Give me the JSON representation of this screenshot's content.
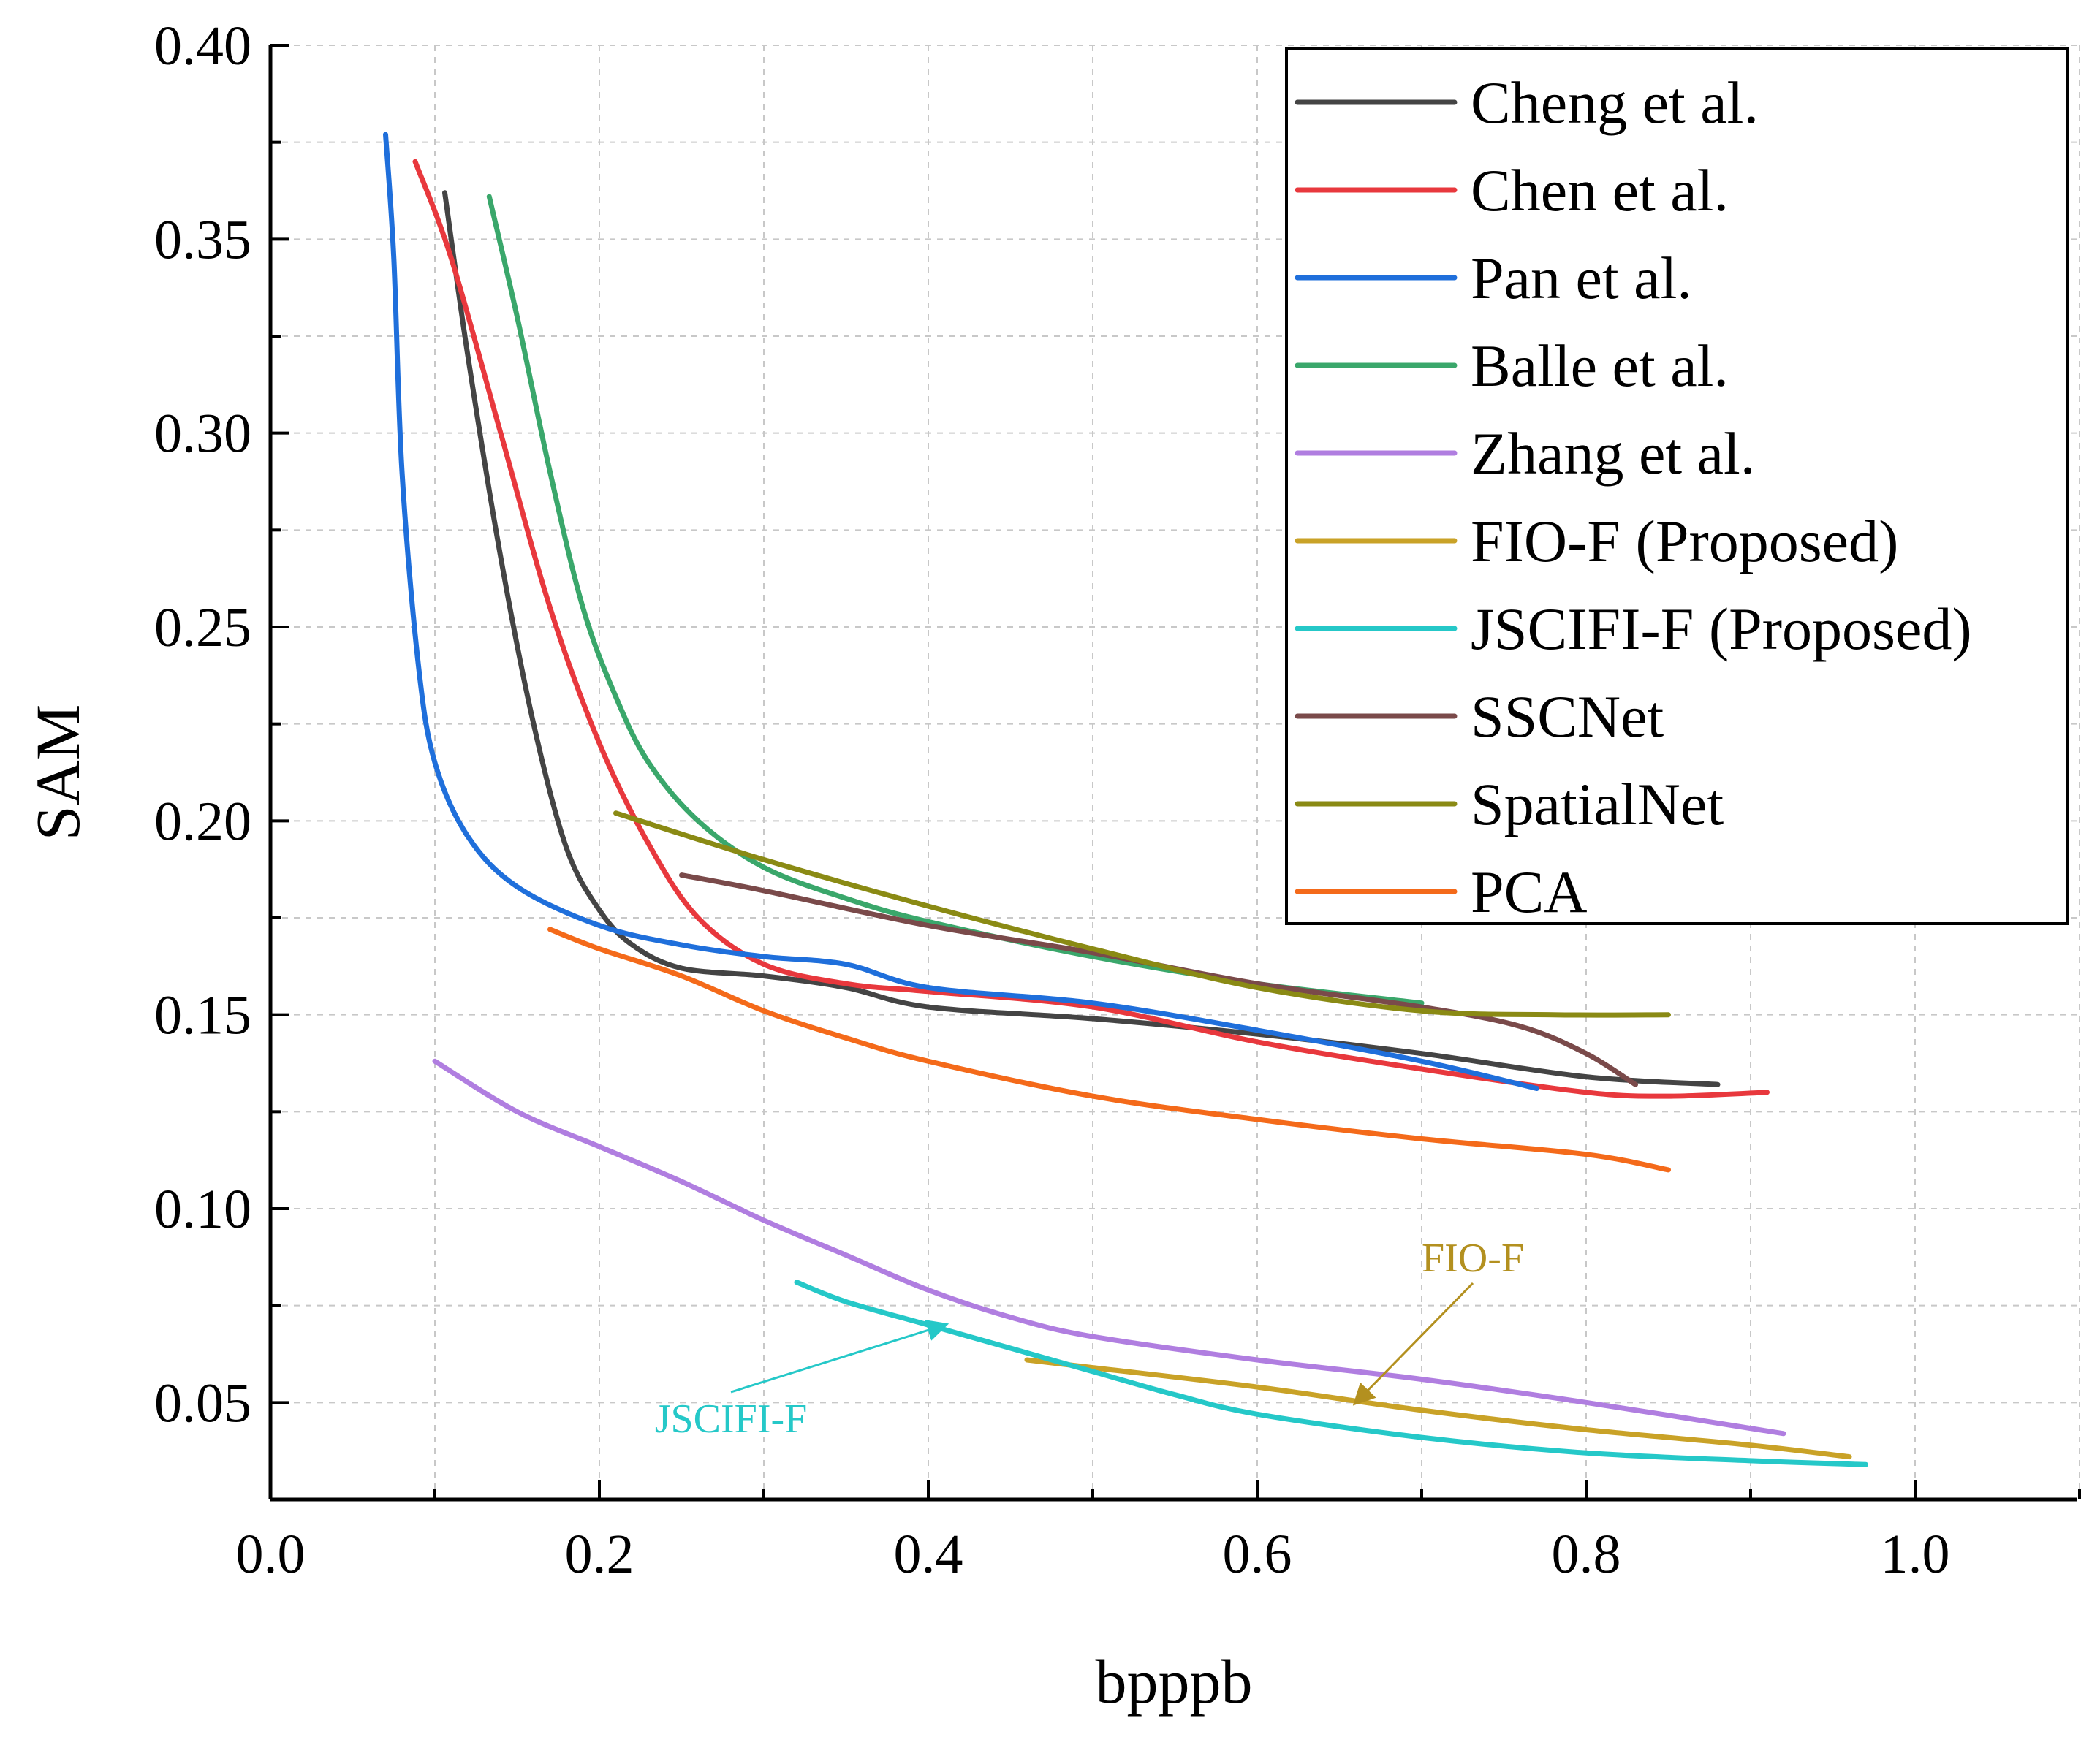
{
  "chart_data": {
    "type": "line",
    "title": "",
    "xlabel": "bpppb",
    "ylabel": "SAM",
    "xlim": [
      0.0,
      1.1
    ],
    "ylim": [
      0.025,
      0.4
    ],
    "x_ticks": [
      0.0,
      0.2,
      0.4,
      0.6,
      0.8,
      1.0
    ],
    "x_tick_labels": [
      "0.0",
      "0.2",
      "0.4",
      "0.6",
      "0.8",
      "1.0"
    ],
    "y_ticks": [
      0.05,
      0.1,
      0.15,
      0.2,
      0.25,
      0.3,
      0.35,
      0.4
    ],
    "y_tick_labels": [
      "0.05",
      "0.10",
      "0.15",
      "0.20",
      "0.25",
      "0.30",
      "0.35",
      "0.40"
    ],
    "grid": true,
    "legend_position": "top-right",
    "series": [
      {
        "name": "Cheng et al.",
        "color": "#444444",
        "points": [
          [
            0.106,
            0.362
          ],
          [
            0.12,
            0.32
          ],
          [
            0.14,
            0.268
          ],
          [
            0.16,
            0.225
          ],
          [
            0.18,
            0.193
          ],
          [
            0.2,
            0.177
          ],
          [
            0.22,
            0.168
          ],
          [
            0.25,
            0.162
          ],
          [
            0.3,
            0.16
          ],
          [
            0.35,
            0.157
          ],
          [
            0.4,
            0.152
          ],
          [
            0.5,
            0.149
          ],
          [
            0.6,
            0.145
          ],
          [
            0.7,
            0.14
          ],
          [
            0.8,
            0.134
          ],
          [
            0.88,
            0.132
          ]
        ]
      },
      {
        "name": "Chen et al.",
        "color": "#e8383d",
        "points": [
          [
            0.088,
            0.37
          ],
          [
            0.11,
            0.345
          ],
          [
            0.14,
            0.3
          ],
          [
            0.17,
            0.255
          ],
          [
            0.2,
            0.22
          ],
          [
            0.23,
            0.194
          ],
          [
            0.26,
            0.175
          ],
          [
            0.3,
            0.163
          ],
          [
            0.35,
            0.158
          ],
          [
            0.4,
            0.156
          ],
          [
            0.5,
            0.152
          ],
          [
            0.6,
            0.143
          ],
          [
            0.7,
            0.136
          ],
          [
            0.8,
            0.13
          ],
          [
            0.85,
            0.129
          ],
          [
            0.91,
            0.13
          ]
        ]
      },
      {
        "name": "Pan et al.",
        "color": "#1f6fdb",
        "points": [
          [
            0.07,
            0.377
          ],
          [
            0.075,
            0.345
          ],
          [
            0.08,
            0.29
          ],
          [
            0.09,
            0.24
          ],
          [
            0.1,
            0.215
          ],
          [
            0.12,
            0.196
          ],
          [
            0.15,
            0.183
          ],
          [
            0.2,
            0.173
          ],
          [
            0.25,
            0.168
          ],
          [
            0.3,
            0.165
          ],
          [
            0.35,
            0.163
          ],
          [
            0.4,
            0.157
          ],
          [
            0.5,
            0.153
          ],
          [
            0.6,
            0.146
          ],
          [
            0.7,
            0.138
          ],
          [
            0.77,
            0.131
          ]
        ]
      },
      {
        "name": "Balle et al.",
        "color": "#3aa76b",
        "points": [
          [
            0.133,
            0.361
          ],
          [
            0.15,
            0.33
          ],
          [
            0.17,
            0.29
          ],
          [
            0.19,
            0.255
          ],
          [
            0.21,
            0.232
          ],
          [
            0.23,
            0.215
          ],
          [
            0.26,
            0.2
          ],
          [
            0.3,
            0.188
          ],
          [
            0.35,
            0.18
          ],
          [
            0.4,
            0.174
          ],
          [
            0.5,
            0.165
          ],
          [
            0.6,
            0.158
          ],
          [
            0.7,
            0.153
          ]
        ]
      },
      {
        "name": "Zhang et al.",
        "color": "#b07ee0",
        "points": [
          [
            0.1,
            0.138
          ],
          [
            0.15,
            0.125
          ],
          [
            0.2,
            0.116
          ],
          [
            0.25,
            0.107
          ],
          [
            0.3,
            0.097
          ],
          [
            0.35,
            0.088
          ],
          [
            0.4,
            0.079
          ],
          [
            0.45,
            0.072
          ],
          [
            0.5,
            0.067
          ],
          [
            0.6,
            0.061
          ],
          [
            0.7,
            0.056
          ],
          [
            0.8,
            0.05
          ],
          [
            0.92,
            0.042
          ]
        ]
      },
      {
        "name": "FIO-F (Proposed)",
        "color": "#c9a227",
        "points": [
          [
            0.46,
            0.061
          ],
          [
            0.5,
            0.059
          ],
          [
            0.6,
            0.054
          ],
          [
            0.7,
            0.048
          ],
          [
            0.8,
            0.043
          ],
          [
            0.9,
            0.039
          ],
          [
            0.96,
            0.036
          ]
        ]
      },
      {
        "name": "JSCIFI-F (Proposed)",
        "color": "#25c8c8",
        "points": [
          [
            0.32,
            0.081
          ],
          [
            0.35,
            0.076
          ],
          [
            0.4,
            0.07
          ],
          [
            0.45,
            0.064
          ],
          [
            0.5,
            0.058
          ],
          [
            0.55,
            0.052
          ],
          [
            0.6,
            0.047
          ],
          [
            0.7,
            0.041
          ],
          [
            0.8,
            0.037
          ],
          [
            0.9,
            0.035
          ],
          [
            0.97,
            0.034
          ]
        ]
      },
      {
        "name": "SSCNet",
        "color": "#7a4a4a",
        "points": [
          [
            0.25,
            0.186
          ],
          [
            0.3,
            0.182
          ],
          [
            0.4,
            0.173
          ],
          [
            0.5,
            0.166
          ],
          [
            0.6,
            0.158
          ],
          [
            0.7,
            0.152
          ],
          [
            0.76,
            0.147
          ],
          [
            0.8,
            0.14
          ],
          [
            0.83,
            0.132
          ]
        ]
      },
      {
        "name": "SpatialNet",
        "color": "#8a8a14",
        "points": [
          [
            0.21,
            0.202
          ],
          [
            0.3,
            0.19
          ],
          [
            0.4,
            0.178
          ],
          [
            0.5,
            0.167
          ],
          [
            0.6,
            0.157
          ],
          [
            0.7,
            0.151
          ],
          [
            0.78,
            0.15
          ],
          [
            0.85,
            0.15
          ]
        ]
      },
      {
        "name": "PCA",
        "color": "#f46a1a",
        "points": [
          [
            0.17,
            0.172
          ],
          [
            0.2,
            0.167
          ],
          [
            0.25,
            0.16
          ],
          [
            0.3,
            0.151
          ],
          [
            0.35,
            0.144
          ],
          [
            0.4,
            0.138
          ],
          [
            0.5,
            0.129
          ],
          [
            0.6,
            0.123
          ],
          [
            0.7,
            0.118
          ],
          [
            0.8,
            0.114
          ],
          [
            0.85,
            0.11
          ]
        ]
      }
    ],
    "annotations": [
      {
        "text": "FIO-F",
        "color": "#b3901f",
        "points_to": [
          0.66,
          0.05
        ]
      },
      {
        "text": "JSCIFI-F",
        "color": "#25c8c8",
        "points_to": [
          0.41,
          0.07
        ]
      }
    ]
  }
}
